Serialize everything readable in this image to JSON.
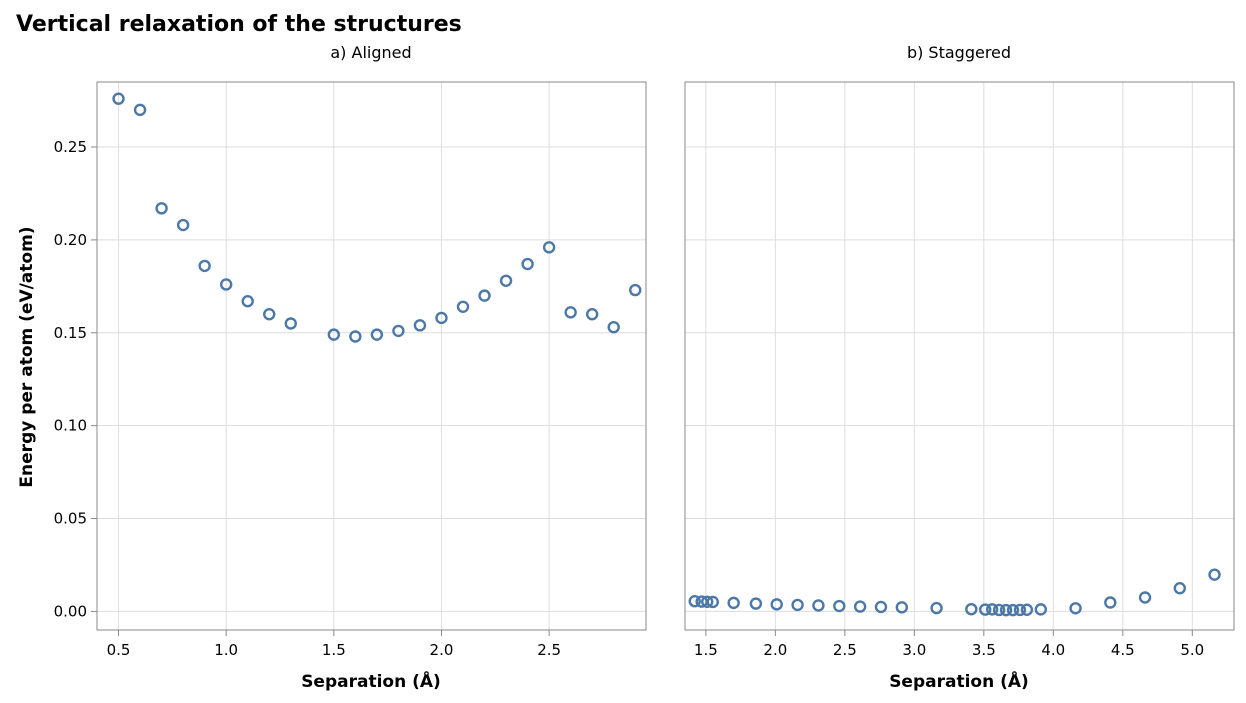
{
  "figure": {
    "title": "Vertical relaxation of the structures",
    "point_color": "#4c78a8"
  },
  "chart_data": [
    {
      "type": "scatter",
      "subtitle": "a) Aligned",
      "xlabel": "Separation (Å)",
      "ylabel": "Energy per atom (eV/atom)",
      "xlim": [
        0.4,
        2.95
      ],
      "ylim": [
        -0.01,
        0.285
      ],
      "xticks": [
        0.5,
        1.0,
        1.5,
        2.0,
        2.5
      ],
      "xtick_labels": [
        "0.5",
        "1.0",
        "1.5",
        "2.0",
        "2.5"
      ],
      "yticks": [
        0.0,
        0.05,
        0.1,
        0.15,
        0.2,
        0.25
      ],
      "ytick_labels": [
        "0.00",
        "0.05",
        "0.10",
        "0.15",
        "0.20",
        "0.25"
      ],
      "grid": true,
      "marker": "open-circle",
      "points": [
        {
          "x": 0.5,
          "y": 0.276
        },
        {
          "x": 0.6,
          "y": 0.27
        },
        {
          "x": 0.7,
          "y": 0.217
        },
        {
          "x": 0.8,
          "y": 0.208
        },
        {
          "x": 0.9,
          "y": 0.186
        },
        {
          "x": 1.0,
          "y": 0.176
        },
        {
          "x": 1.1,
          "y": 0.167
        },
        {
          "x": 1.2,
          "y": 0.16
        },
        {
          "x": 1.3,
          "y": 0.155
        },
        {
          "x": 1.5,
          "y": 0.149
        },
        {
          "x": 1.6,
          "y": 0.148
        },
        {
          "x": 1.7,
          "y": 0.149
        },
        {
          "x": 1.8,
          "y": 0.151
        },
        {
          "x": 1.9,
          "y": 0.154
        },
        {
          "x": 2.0,
          "y": 0.158
        },
        {
          "x": 2.1,
          "y": 0.164
        },
        {
          "x": 2.2,
          "y": 0.17
        },
        {
          "x": 2.3,
          "y": 0.178
        },
        {
          "x": 2.4,
          "y": 0.187
        },
        {
          "x": 2.5,
          "y": 0.196
        },
        {
          "x": 2.6,
          "y": 0.161
        },
        {
          "x": 2.7,
          "y": 0.16
        },
        {
          "x": 2.8,
          "y": 0.153
        },
        {
          "x": 2.9,
          "y": 0.173
        }
      ]
    },
    {
      "type": "scatter",
      "subtitle": "b) Staggered",
      "xlabel": "Separation (Å)",
      "ylabel": "",
      "xlim": [
        1.35,
        5.3
      ],
      "ylim": [
        -0.01,
        0.285
      ],
      "xticks": [
        1.5,
        2.0,
        2.5,
        3.0,
        3.5,
        4.0,
        4.5,
        5.0
      ],
      "xtick_labels": [
        "1.5",
        "2.0",
        "2.5",
        "3.0",
        "3.5",
        "4.0",
        "4.5",
        "5.0"
      ],
      "yticks": [
        0.0,
        0.05,
        0.1,
        0.15,
        0.2,
        0.25
      ],
      "ytick_labels": [],
      "grid": true,
      "marker": "open-circle",
      "points": [
        {
          "x": 1.42,
          "y": 0.0055
        },
        {
          "x": 1.47,
          "y": 0.0053
        },
        {
          "x": 1.51,
          "y": 0.0052
        },
        {
          "x": 1.55,
          "y": 0.0051
        },
        {
          "x": 1.7,
          "y": 0.0046
        },
        {
          "x": 1.86,
          "y": 0.0042
        },
        {
          "x": 2.01,
          "y": 0.0038
        },
        {
          "x": 2.16,
          "y": 0.0035
        },
        {
          "x": 2.31,
          "y": 0.0032
        },
        {
          "x": 2.46,
          "y": 0.0029
        },
        {
          "x": 2.61,
          "y": 0.0026
        },
        {
          "x": 2.76,
          "y": 0.0024
        },
        {
          "x": 2.91,
          "y": 0.0022
        },
        {
          "x": 3.16,
          "y": 0.0018
        },
        {
          "x": 3.41,
          "y": 0.0012
        },
        {
          "x": 3.51,
          "y": 0.001
        },
        {
          "x": 3.56,
          "y": 0.0011
        },
        {
          "x": 3.61,
          "y": 0.0008
        },
        {
          "x": 3.66,
          "y": 0.0007
        },
        {
          "x": 3.71,
          "y": 0.0007
        },
        {
          "x": 3.76,
          "y": 0.0008
        },
        {
          "x": 3.81,
          "y": 0.0009
        },
        {
          "x": 3.91,
          "y": 0.0011
        },
        {
          "x": 4.16,
          "y": 0.0017
        },
        {
          "x": 4.41,
          "y": 0.0048
        },
        {
          "x": 4.66,
          "y": 0.0075
        },
        {
          "x": 4.91,
          "y": 0.0125
        },
        {
          "x": 5.16,
          "y": 0.0198
        }
      ]
    }
  ]
}
